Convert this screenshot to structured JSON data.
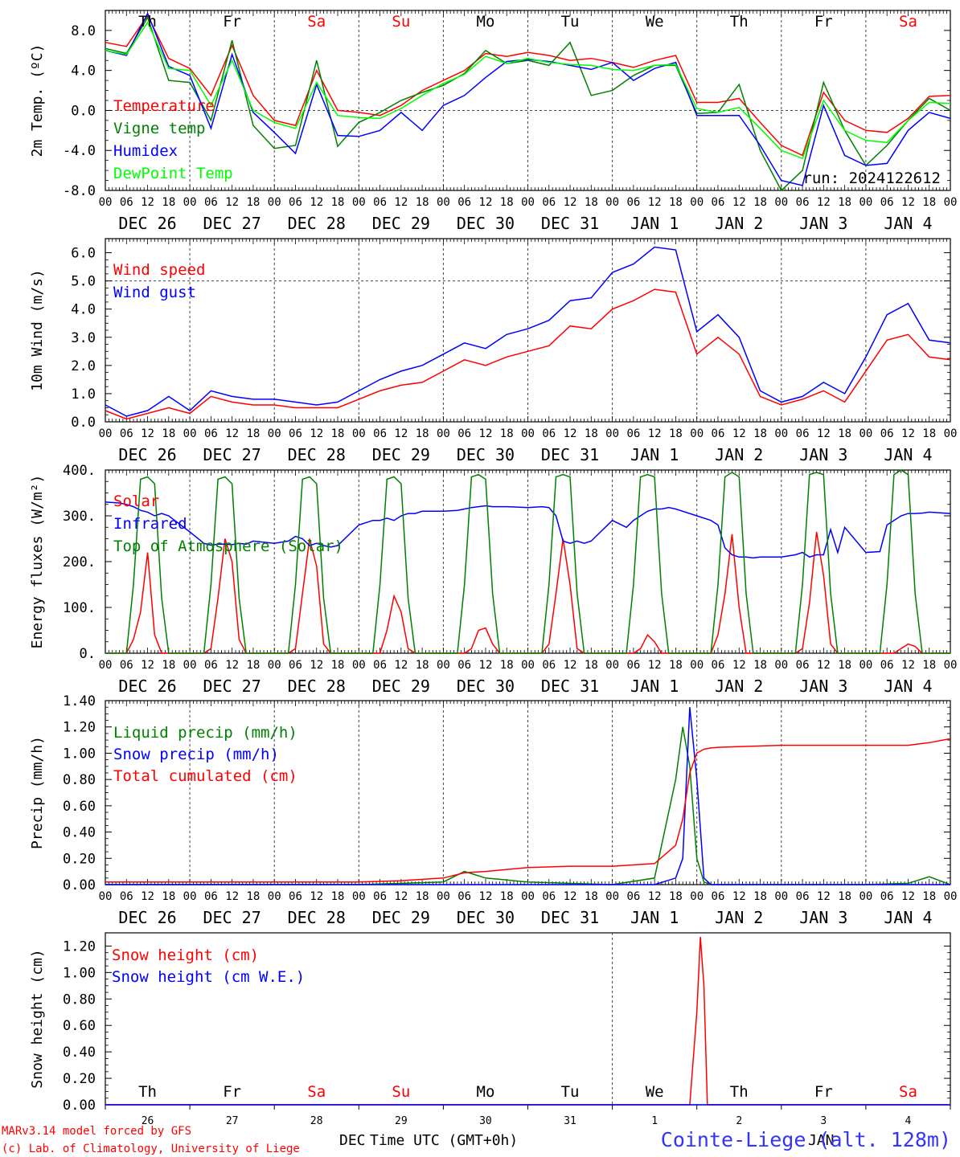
{
  "footer": {
    "model_line": "MARv3.14 model forced by GFS",
    "lab_line": "(c) Lab. of Climatology, University of Liege",
    "xlabel": "Time UTC (GMT+0h)",
    "station": "Cointe-Liege (alt. 128m)",
    "dec_label": "DEC",
    "jan_label": "JAN"
  },
  "day_names": [
    "Th",
    "Fr",
    "Sa",
    "Su",
    "Mo",
    "Tu",
    "We",
    "Th",
    "Fr",
    "Sa"
  ],
  "weekend_color": "#ff0000",
  "date_labels": [
    "DEC 26",
    "DEC 27",
    "DEC 28",
    "DEC 29",
    "DEC 30",
    "DEC 31",
    "JAN  1",
    "JAN  2",
    "JAN  3",
    "JAN  4"
  ],
  "day_numbers": [
    "26",
    "27",
    "28",
    "29",
    "30",
    "31",
    "1",
    "2",
    "3",
    "4"
  ],
  "hour_ticks": [
    "00",
    "06",
    "12",
    "18"
  ],
  "final_tick": "00",
  "run_label": "run: 2024122612",
  "chart_data": [
    {
      "type": "line",
      "ylabel": "2m Temp. (ºC)",
      "ylim": [
        -8,
        10
      ],
      "yticks": [
        "8.0",
        "4.0",
        "0.0",
        "-4.0",
        "-8.0"
      ],
      "ref_line": 0,
      "x_hours": [
        0,
        6,
        12,
        18,
        24,
        30,
        36,
        42,
        48,
        54,
        60,
        66,
        72,
        78,
        84,
        90,
        96,
        102,
        108,
        114,
        120,
        126,
        132,
        138,
        144,
        150,
        156,
        162,
        168,
        174,
        180,
        186,
        192,
        198,
        204,
        210,
        216,
        222,
        228,
        234,
        240
      ],
      "series": [
        {
          "name": "Temperature",
          "color": "#ff0000",
          "values": [
            6.8,
            6.4,
            9.5,
            5.2,
            4.2,
            1.5,
            6.5,
            1.5,
            -1.0,
            -1.5,
            4.0,
            0.0,
            -0.2,
            -0.5,
            0.5,
            2.0,
            3.0,
            4.0,
            5.7,
            5.4,
            5.8,
            5.5,
            5.0,
            5.2,
            4.8,
            4.3,
            5.0,
            5.5,
            0.8,
            0.8,
            1.2,
            -1.2,
            -3.5,
            -4.5,
            1.8,
            -1.0,
            -2.0,
            -2.2,
            -0.8,
            1.4,
            1.5
          ]
        },
        {
          "name": "Vigne temp",
          "color": "#008000",
          "values": [
            6.2,
            5.7,
            9.3,
            3.0,
            2.8,
            -1.0,
            7.0,
            -1.5,
            -3.8,
            -3.5,
            5.0,
            -3.6,
            -1.2,
            -0.2,
            1.0,
            1.8,
            2.5,
            3.7,
            6.0,
            4.7,
            5.0,
            4.5,
            6.8,
            1.5,
            2.0,
            3.5,
            4.5,
            4.5,
            -0.3,
            -0.2,
            2.6,
            -4.0,
            -8.0,
            -6.0,
            2.8,
            -2.0,
            -5.5,
            -3.5,
            -1.0,
            1.2,
            0.0
          ]
        },
        {
          "name": "Humidex",
          "color": "#0000ff",
          "values": [
            6.0,
            5.5,
            9.7,
            4.4,
            3.5,
            -1.8,
            5.6,
            -0.2,
            -2.2,
            -4.3,
            2.6,
            -2.5,
            -2.6,
            -2.0,
            -0.2,
            -2.0,
            0.5,
            1.5,
            3.3,
            4.9,
            5.1,
            4.9,
            4.5,
            4.1,
            4.8,
            3.0,
            4.2,
            4.8,
            -0.5,
            -0.5,
            -0.5,
            -3.5,
            -7.0,
            -7.5,
            0.5,
            -4.5,
            -5.5,
            -5.3,
            -2.0,
            -0.2,
            -0.8
          ]
        },
        {
          "name": "DewPoint Temp",
          "color": "#00ff00",
          "values": [
            6.0,
            5.6,
            8.8,
            4.2,
            4.0,
            0.5,
            5.0,
            0.0,
            -1.2,
            -1.8,
            2.8,
            -0.5,
            -0.7,
            -0.8,
            0.2,
            1.5,
            2.7,
            3.6,
            5.4,
            4.7,
            5.2,
            4.8,
            4.6,
            4.5,
            4.1,
            4.0,
            4.5,
            4.6,
            0.2,
            -0.2,
            0.3,
            -1.8,
            -4.0,
            -4.8,
            1.0,
            -2.0,
            -3.0,
            -3.2,
            -1.0,
            0.8,
            0.7
          ]
        }
      ]
    },
    {
      "type": "line",
      "ylabel": "10m Wind (m/s)",
      "ylim": [
        0,
        6.5
      ],
      "yticks": [
        "6.0",
        "5.0",
        "4.0",
        "3.0",
        "2.0",
        "1.0",
        "0.0"
      ],
      "ref_line": 5.0,
      "x_hours": [
        0,
        6,
        12,
        18,
        24,
        30,
        36,
        42,
        48,
        54,
        60,
        66,
        72,
        78,
        84,
        90,
        96,
        102,
        108,
        114,
        120,
        126,
        132,
        138,
        144,
        150,
        156,
        162,
        168,
        174,
        180,
        186,
        192,
        198,
        204,
        210,
        216,
        222,
        228,
        234,
        240
      ],
      "series": [
        {
          "name": "Wind speed",
          "color": "#ff0000",
          "values": [
            0.4,
            0.1,
            0.3,
            0.5,
            0.3,
            0.9,
            0.7,
            0.6,
            0.6,
            0.5,
            0.5,
            0.5,
            0.8,
            1.1,
            1.3,
            1.4,
            1.8,
            2.2,
            2.0,
            2.3,
            2.5,
            2.7,
            3.4,
            3.3,
            4.0,
            4.3,
            4.7,
            4.6,
            2.4,
            3.0,
            2.4,
            0.9,
            0.6,
            0.8,
            1.1,
            0.7,
            1.8,
            2.9,
            3.1,
            2.3,
            2.2
          ]
        },
        {
          "name": "Wind gust",
          "color": "#0000ff",
          "values": [
            0.6,
            0.2,
            0.4,
            0.9,
            0.4,
            1.1,
            0.9,
            0.8,
            0.8,
            0.7,
            0.6,
            0.7,
            1.1,
            1.5,
            1.8,
            2.0,
            2.4,
            2.8,
            2.6,
            3.1,
            3.3,
            3.6,
            4.3,
            4.4,
            5.3,
            5.6,
            6.2,
            6.1,
            3.2,
            3.8,
            3.0,
            1.1,
            0.7,
            0.9,
            1.4,
            1.0,
            2.3,
            3.8,
            4.2,
            2.9,
            2.8
          ]
        }
      ]
    },
    {
      "type": "line",
      "ylabel": "Energy fluxes (W/m²)",
      "ylim": [
        0,
        400
      ],
      "yticks": [
        "400.",
        "300.",
        "200.",
        "100.",
        "0."
      ],
      "x_hours": [
        0,
        4,
        6,
        8,
        10,
        12,
        14,
        16,
        18,
        24,
        28,
        30,
        32,
        34,
        36,
        38,
        40,
        42,
        48,
        52,
        54,
        56,
        58,
        60,
        62,
        64,
        66,
        72,
        76,
        78,
        80,
        82,
        84,
        86,
        88,
        90,
        96,
        100,
        102,
        104,
        106,
        108,
        110,
        112,
        114,
        120,
        124,
        126,
        128,
        130,
        132,
        134,
        136,
        138,
        144,
        148,
        150,
        152,
        154,
        156,
        158,
        160,
        162,
        168,
        172,
        174,
        176,
        178,
        180,
        182,
        184,
        186,
        192,
        196,
        198,
        200,
        202,
        204,
        206,
        208,
        210,
        216,
        220,
        222,
        224,
        226,
        228,
        230,
        232,
        234,
        240
      ],
      "series": [
        {
          "name": "Solar",
          "color": "#ff0000",
          "values": [
            0,
            0,
            0,
            30,
            90,
            220,
            40,
            0,
            0,
            0,
            0,
            10,
            120,
            250,
            200,
            30,
            0,
            0,
            0,
            0,
            10,
            130,
            250,
            190,
            20,
            0,
            0,
            0,
            0,
            0,
            50,
            125,
            90,
            10,
            0,
            0,
            0,
            0,
            0,
            10,
            50,
            55,
            20,
            0,
            0,
            0,
            0,
            20,
            130,
            250,
            150,
            10,
            0,
            0,
            0,
            0,
            0,
            10,
            40,
            25,
            0,
            0,
            0,
            0,
            0,
            40,
            130,
            260,
            100,
            0,
            0,
            0,
            0,
            0,
            10,
            110,
            265,
            170,
            20,
            0,
            0,
            0,
            0,
            0,
            0,
            10,
            20,
            15,
            0,
            0,
            0
          ]
        },
        {
          "name": "Infrared",
          "color": "#0000ff",
          "values": [
            330,
            328,
            325,
            320,
            312,
            308,
            300,
            305,
            300,
            265,
            240,
            236,
            238,
            238,
            237,
            240,
            238,
            245,
            240,
            245,
            255,
            250,
            235,
            240,
            235,
            232,
            235,
            280,
            290,
            290,
            295,
            290,
            300,
            305,
            305,
            310,
            310,
            312,
            315,
            318,
            320,
            322,
            320,
            320,
            320,
            318,
            320,
            318,
            300,
            245,
            240,
            245,
            240,
            245,
            290,
            275,
            290,
            300,
            310,
            315,
            315,
            318,
            315,
            300,
            290,
            280,
            230,
            215,
            210,
            210,
            208,
            210,
            210,
            215,
            220,
            210,
            215,
            215,
            270,
            220,
            275,
            220,
            222,
            280,
            290,
            300,
            305,
            305,
            306,
            308,
            305
          ]
        },
        {
          "name": "Top of Atmosphere (Solar)",
          "color": "#008000",
          "values": [
            0,
            0,
            0,
            150,
            380,
            385,
            370,
            120,
            0,
            0,
            0,
            150,
            380,
            385,
            370,
            120,
            0,
            0,
            0,
            0,
            150,
            380,
            385,
            370,
            120,
            0,
            0,
            0,
            0,
            150,
            380,
            385,
            370,
            120,
            0,
            0,
            0,
            0,
            150,
            385,
            390,
            380,
            130,
            0,
            0,
            0,
            0,
            150,
            385,
            390,
            385,
            130,
            0,
            0,
            0,
            0,
            150,
            385,
            390,
            385,
            130,
            0,
            0,
            0,
            0,
            150,
            385,
            395,
            385,
            130,
            0,
            0,
            0,
            0,
            150,
            390,
            395,
            390,
            130,
            0,
            0,
            0,
            0,
            150,
            390,
            400,
            390,
            130,
            0,
            0,
            0
          ]
        }
      ]
    },
    {
      "type": "line",
      "ylabel": "Precip (mm/h)",
      "ylim": [
        0,
        1.4
      ],
      "yticks": [
        "1.40",
        "1.20",
        "1.00",
        "0.80",
        "0.60",
        "0.40",
        "0.20",
        "0.00"
      ],
      "x_hours": [
        0,
        24,
        48,
        72,
        84,
        96,
        102,
        108,
        120,
        132,
        144,
        156,
        162,
        164,
        166,
        168,
        170,
        172,
        174,
        180,
        192,
        204,
        216,
        228,
        234,
        240
      ],
      "series": [
        {
          "name": "Liquid precip (mm/h)",
          "color": "#008000",
          "values": [
            0,
            0,
            0,
            0,
            0.01,
            0.02,
            0.1,
            0.05,
            0.02,
            0.01,
            0.0,
            0.05,
            0.8,
            1.2,
            0.9,
            0.2,
            0.02,
            0.0,
            0,
            0,
            0,
            0,
            0,
            0.01,
            0.06,
            0.0
          ]
        },
        {
          "name": "Snow precip (mm/h)",
          "color": "#0000ff",
          "values": [
            0,
            0,
            0,
            0,
            0,
            0,
            0,
            0,
            0,
            0,
            0,
            0,
            0.05,
            0.2,
            1.35,
            0.8,
            0.05,
            0,
            0,
            0,
            0,
            0,
            0,
            0,
            0,
            0
          ]
        },
        {
          "name": "Total cumulated (cm)",
          "color": "#ff0000",
          "values": [
            0.02,
            0.02,
            0.02,
            0.02,
            0.03,
            0.05,
            0.09,
            0.1,
            0.13,
            0.14,
            0.14,
            0.16,
            0.3,
            0.5,
            0.85,
            1.0,
            1.03,
            1.04,
            1.045,
            1.05,
            1.06,
            1.06,
            1.06,
            1.06,
            1.08,
            1.11
          ]
        }
      ]
    },
    {
      "type": "line",
      "ylabel": "Snow height (cm)",
      "ylim": [
        0,
        1.3
      ],
      "yticks": [
        "1.20",
        "1.00",
        "0.80",
        "0.60",
        "0.40",
        "0.20",
        "0.00"
      ],
      "x_hours": [
        0,
        24,
        48,
        72,
        96,
        120,
        144,
        166,
        168,
        169,
        170,
        171,
        172,
        240
      ],
      "series": [
        {
          "name": "Snow height (cm)",
          "color": "#ff0000",
          "values": [
            0,
            0,
            0,
            0,
            0,
            0,
            0,
            0,
            0.7,
            1.27,
            0.9,
            0.0,
            0,
            0
          ]
        },
        {
          "name": "Snow height (cm W.E.)",
          "color": "#0000ff",
          "values": [
            0,
            0,
            0,
            0,
            0,
            0,
            0,
            0,
            0,
            0,
            0,
            0,
            0,
            0
          ]
        }
      ]
    }
  ]
}
